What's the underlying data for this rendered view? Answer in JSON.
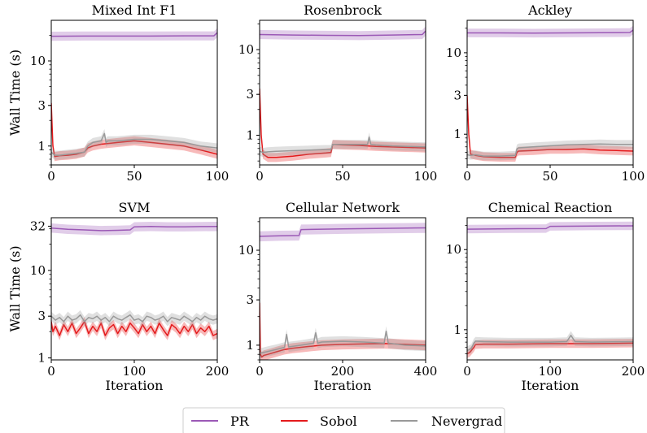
{
  "legend": {
    "entries": [
      {
        "name": "PR",
        "color": "#9b59b6"
      },
      {
        "name": "Sobol",
        "color": "#e41a1c"
      },
      {
        "name": "Nevergrad",
        "color": "#999999"
      }
    ],
    "placement": "bottom-center"
  },
  "chart_data": [
    {
      "type": "line",
      "title": "Mixed Int F1",
      "xlabel": "",
      "ylabel": "Wall Time (s)",
      "yscale": "log",
      "xlim": [
        0,
        100
      ],
      "ylim": [
        0.6,
        30
      ],
      "xticks": [
        0,
        50,
        100
      ],
      "yticks": [
        1,
        3,
        10
      ],
      "grid": false,
      "series": [
        {
          "name": "PR",
          "color": "#9b59b6",
          "x": [
            0,
            20,
            40,
            60,
            80,
            98,
            100
          ],
          "y": [
            19.5,
            19.6,
            19.6,
            19.6,
            19.7,
            19.7,
            21.5
          ]
        },
        {
          "name": "Sobol",
          "color": "#e41a1c",
          "x": [
            0,
            1,
            2,
            5,
            10,
            15,
            20,
            22,
            25,
            30,
            40,
            50,
            60,
            70,
            80,
            90,
            100
          ],
          "y": [
            3.2,
            1.0,
            0.75,
            0.77,
            0.78,
            0.8,
            0.85,
            0.95,
            1.0,
            1.05,
            1.1,
            1.15,
            1.1,
            1.05,
            1.0,
            0.9,
            0.8
          ]
        },
        {
          "name": "Nevergrad",
          "color": "#999999",
          "x": [
            0,
            2,
            5,
            10,
            15,
            20,
            22,
            25,
            30,
            32,
            33,
            34,
            40,
            50,
            60,
            70,
            80,
            90,
            100
          ],
          "y": [
            0.85,
            0.78,
            0.78,
            0.8,
            0.82,
            0.85,
            1.0,
            1.1,
            1.15,
            1.4,
            1.1,
            1.15,
            1.15,
            1.2,
            1.2,
            1.15,
            1.1,
            1.0,
            0.95
          ]
        }
      ]
    },
    {
      "type": "line",
      "title": "Rosenbrock",
      "xlabel": "",
      "ylabel": "",
      "yscale": "log",
      "xlim": [
        0,
        100
      ],
      "ylim": [
        0.45,
        22
      ],
      "xticks": [
        0,
        50,
        100
      ],
      "yticks": [
        1,
        3,
        10
      ],
      "grid": false,
      "series": [
        {
          "name": "PR",
          "color": "#9b59b6",
          "x": [
            0,
            20,
            40,
            60,
            80,
            98,
            100
          ],
          "y": [
            15.0,
            14.8,
            14.7,
            14.6,
            14.8,
            15.0,
            16.5
          ]
        },
        {
          "name": "Sobol",
          "color": "#e41a1c",
          "x": [
            0,
            1,
            2,
            5,
            10,
            20,
            30,
            40,
            43,
            44,
            50,
            60,
            70,
            80,
            90,
            100
          ],
          "y": [
            3.5,
            1.0,
            0.6,
            0.55,
            0.55,
            0.57,
            0.6,
            0.62,
            0.63,
            0.78,
            0.77,
            0.76,
            0.74,
            0.73,
            0.72,
            0.71
          ]
        },
        {
          "name": "Nevergrad",
          "color": "#999999",
          "x": [
            0,
            2,
            5,
            10,
            20,
            30,
            40,
            43,
            44,
            50,
            60,
            65,
            66,
            67,
            70,
            80,
            90,
            100
          ],
          "y": [
            0.65,
            0.63,
            0.64,
            0.65,
            0.66,
            0.67,
            0.68,
            0.68,
            0.78,
            0.78,
            0.78,
            0.78,
            0.95,
            0.78,
            0.77,
            0.75,
            0.74,
            0.73
          ]
        }
      ]
    },
    {
      "type": "line",
      "title": "Ackley",
      "xlabel": "",
      "ylabel": "",
      "yscale": "log",
      "xlim": [
        0,
        100
      ],
      "ylim": [
        0.42,
        25
      ],
      "xticks": [
        0,
        50,
        100
      ],
      "yticks": [
        1,
        3,
        10
      ],
      "grid": false,
      "series": [
        {
          "name": "PR",
          "color": "#9b59b6",
          "x": [
            0,
            20,
            40,
            60,
            80,
            98,
            100
          ],
          "y": [
            17.5,
            17.5,
            17.4,
            17.5,
            17.6,
            17.7,
            19.0
          ]
        },
        {
          "name": "Sobol",
          "color": "#e41a1c",
          "x": [
            0,
            1,
            2,
            5,
            10,
            20,
            29,
            30,
            31,
            40,
            50,
            60,
            70,
            80,
            90,
            100
          ],
          "y": [
            3.0,
            1.0,
            0.57,
            0.55,
            0.53,
            0.52,
            0.52,
            0.6,
            0.62,
            0.63,
            0.65,
            0.65,
            0.66,
            0.64,
            0.63,
            0.62
          ]
        },
        {
          "name": "Nevergrad",
          "color": "#999999",
          "x": [
            0,
            2,
            5,
            10,
            20,
            29,
            30,
            31,
            40,
            50,
            60,
            70,
            80,
            90,
            100
          ],
          "y": [
            0.56,
            0.55,
            0.56,
            0.54,
            0.54,
            0.55,
            0.66,
            0.68,
            0.7,
            0.72,
            0.74,
            0.75,
            0.76,
            0.75,
            0.75
          ]
        }
      ]
    },
    {
      "type": "line",
      "title": "SVM",
      "xlabel": "Iteration",
      "ylabel": "Wall Time (s)",
      "yscale": "log",
      "xlim": [
        0,
        200
      ],
      "ylim": [
        0.95,
        40
      ],
      "xticks": [
        0,
        100,
        200
      ],
      "yticks": [
        1,
        3,
        10,
        32
      ],
      "grid": false,
      "series": [
        {
          "name": "PR",
          "color": "#9b59b6",
          "x": [
            0,
            20,
            40,
            60,
            80,
            95,
            100,
            120,
            140,
            160,
            180,
            200
          ],
          "y": [
            30.5,
            29.5,
            29.0,
            28.5,
            28.7,
            29.0,
            31.5,
            31.8,
            31.5,
            31.5,
            31.7,
            31.8
          ]
        },
        {
          "name": "Sobol",
          "color": "#e41a1c",
          "x": [
            0,
            2,
            5,
            10,
            15,
            20,
            25,
            30,
            35,
            40,
            45,
            50,
            55,
            60,
            65,
            70,
            75,
            80,
            85,
            90,
            95,
            100,
            105,
            110,
            115,
            120,
            125,
            130,
            135,
            140,
            145,
            150,
            155,
            160,
            165,
            170,
            175,
            180,
            185,
            190,
            195,
            200
          ],
          "y": [
            2.6,
            2.0,
            2.3,
            1.8,
            2.4,
            2.0,
            2.5,
            1.9,
            2.2,
            2.6,
            1.9,
            2.3,
            2.0,
            2.5,
            1.8,
            2.2,
            2.4,
            1.9,
            2.3,
            2.0,
            2.5,
            2.2,
            1.9,
            2.4,
            2.0,
            2.3,
            1.9,
            2.5,
            2.1,
            1.8,
            2.4,
            2.2,
            1.9,
            2.3,
            2.0,
            2.4,
            1.9,
            2.2,
            2.0,
            2.3,
            1.8,
            1.9
          ]
        },
        {
          "name": "Nevergrad",
          "color": "#999999",
          "x": [
            0,
            5,
            10,
            15,
            20,
            25,
            30,
            35,
            40,
            45,
            50,
            55,
            60,
            65,
            70,
            75,
            80,
            85,
            90,
            95,
            100,
            105,
            110,
            115,
            120,
            125,
            130,
            135,
            140,
            145,
            150,
            155,
            160,
            165,
            170,
            175,
            180,
            185,
            190,
            195,
            200
          ],
          "y": [
            3.0,
            2.7,
            2.9,
            2.6,
            3.0,
            2.7,
            2.8,
            3.1,
            2.6,
            2.9,
            2.8,
            3.0,
            2.7,
            2.9,
            2.6,
            3.0,
            2.8,
            2.7,
            2.9,
            3.1,
            2.7,
            2.8,
            2.6,
            3.0,
            2.9,
            2.7,
            2.8,
            3.0,
            2.6,
            2.9,
            2.8,
            2.7,
            3.0,
            2.8,
            2.6,
            2.9,
            2.7,
            3.0,
            2.8,
            2.7,
            2.8
          ]
        }
      ]
    },
    {
      "type": "line",
      "title": "Cellular Network",
      "xlabel": "Iteration",
      "ylabel": "",
      "yscale": "log",
      "xlim": [
        0,
        400
      ],
      "ylim": [
        0.7,
        22
      ],
      "xticks": [
        0,
        200,
        400
      ],
      "yticks": [
        1,
        3,
        10
      ],
      "grid": false,
      "series": [
        {
          "name": "PR",
          "color": "#9b59b6",
          "x": [
            0,
            50,
            95,
            100,
            200,
            300,
            400
          ],
          "y": [
            14.0,
            14.2,
            14.3,
            16.5,
            16.8,
            17.0,
            17.2
          ]
        },
        {
          "name": "Sobol",
          "color": "#e41a1c",
          "x": [
            0,
            2,
            5,
            10,
            20,
            40,
            60,
            80,
            100,
            120,
            150,
            200,
            250,
            300,
            350,
            400
          ],
          "y": [
            2.8,
            0.8,
            0.75,
            0.78,
            0.8,
            0.85,
            0.9,
            0.93,
            0.95,
            0.97,
            1.0,
            1.02,
            1.03,
            1.04,
            1.02,
            1.0
          ]
        },
        {
          "name": "Nevergrad",
          "color": "#999999",
          "x": [
            0,
            5,
            20,
            40,
            60,
            65,
            70,
            100,
            130,
            135,
            140,
            150,
            200,
            250,
            300,
            305,
            310,
            350,
            400
          ],
          "y": [
            0.82,
            0.83,
            0.86,
            0.9,
            0.95,
            1.3,
            0.96,
            1.0,
            1.05,
            1.35,
            1.05,
            1.08,
            1.1,
            1.08,
            1.05,
            1.4,
            1.05,
            1.0,
            0.98
          ]
        }
      ]
    },
    {
      "type": "line",
      "title": "Chemical Reaction",
      "xlabel": "Iteration",
      "ylabel": "",
      "yscale": "log",
      "xlim": [
        0,
        200
      ],
      "ylim": [
        0.42,
        25
      ],
      "xticks": [
        0,
        100,
        200
      ],
      "yticks": [
        1,
        10
      ],
      "grid": false,
      "series": [
        {
          "name": "PR",
          "color": "#9b59b6",
          "x": [
            0,
            50,
            95,
            100,
            150,
            200
          ],
          "y": [
            18.0,
            18.2,
            18.3,
            19.5,
            19.7,
            19.8
          ]
        },
        {
          "name": "Sobol",
          "color": "#e41a1c",
          "x": [
            0,
            3,
            5,
            8,
            10,
            20,
            50,
            100,
            150,
            200
          ],
          "y": [
            0.5,
            0.52,
            0.55,
            0.6,
            0.65,
            0.66,
            0.66,
            0.67,
            0.67,
            0.68
          ]
        },
        {
          "name": "Nevergrad",
          "color": "#999999",
          "x": [
            0,
            5,
            8,
            10,
            20,
            50,
            100,
            120,
            125,
            130,
            150,
            200
          ],
          "y": [
            0.55,
            0.58,
            0.68,
            0.72,
            0.71,
            0.7,
            0.7,
            0.71,
            0.85,
            0.71,
            0.7,
            0.71
          ]
        }
      ]
    }
  ]
}
